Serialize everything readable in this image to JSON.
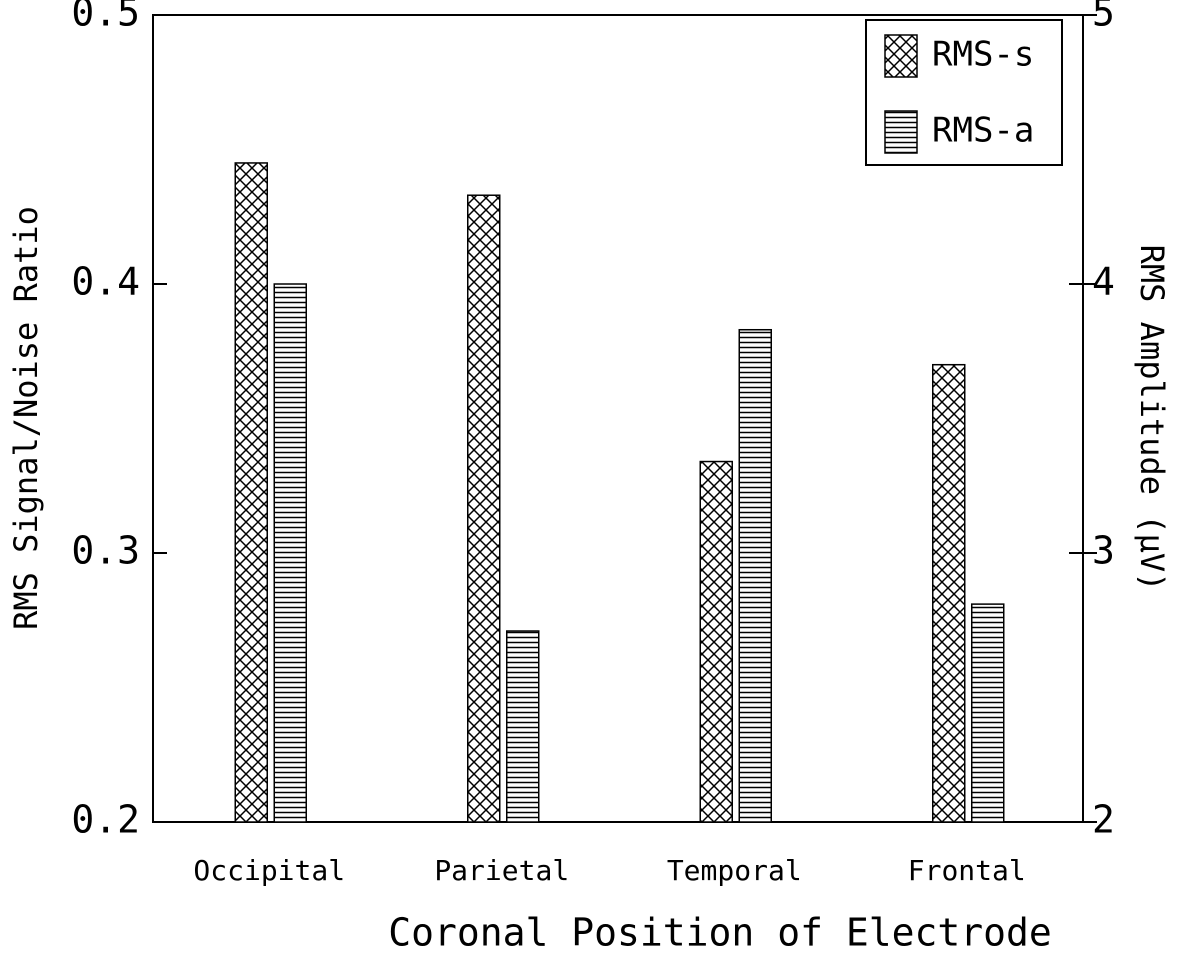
{
  "chart_data": {
    "type": "bar",
    "categories": [
      "Occipital",
      "Parietal",
      "Temporal",
      "Frontal"
    ],
    "series": [
      {
        "name": "RMS-s",
        "color": "#000000",
        "pattern": "crosshatch",
        "values": [
          0.445,
          0.433,
          0.334,
          0.37
        ]
      },
      {
        "name": "RMS-a",
        "color": "#000000",
        "pattern": "horizontal",
        "axis": "y2",
        "values": [
          4.0,
          2.71,
          3.83,
          2.81
        ]
      }
    ],
    "xlabel": "Coronal Position of Electrode",
    "ylabel": "RMS Signal/Noise Ratio",
    "y2label": "RMS Amplitude (μV)",
    "ylim": [
      0.2,
      0.5
    ],
    "yticks": [
      0.2,
      0.3,
      0.4,
      0.5
    ],
    "y2lim": [
      2,
      5
    ],
    "y2ticks": [
      2,
      3,
      4,
      5
    ],
    "legend": "top-right",
    "grid": false
  }
}
